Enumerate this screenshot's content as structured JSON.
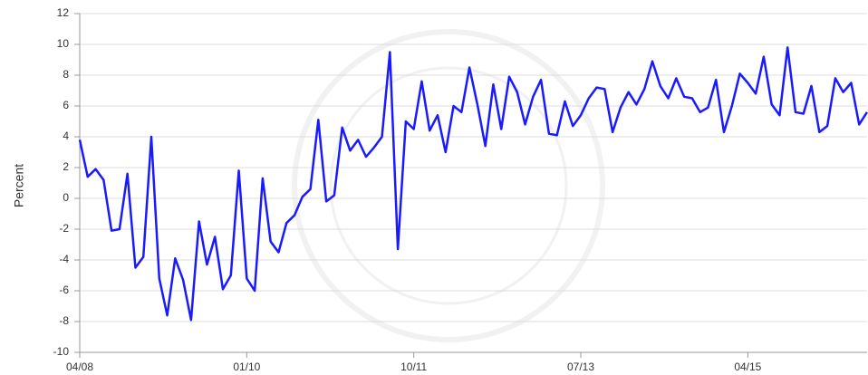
{
  "chart_data": {
    "type": "line",
    "ylabel": "Percent",
    "x": [
      "04/08",
      "05/08",
      "06/08",
      "07/08",
      "08/08",
      "09/08",
      "10/08",
      "11/08",
      "12/08",
      "01/09",
      "02/09",
      "03/09",
      "04/09",
      "05/09",
      "06/09",
      "07/09",
      "08/09",
      "09/09",
      "10/09",
      "11/09",
      "12/09",
      "01/10",
      "02/10",
      "03/10",
      "04/10",
      "05/10",
      "06/10",
      "07/10",
      "08/10",
      "09/10",
      "10/10",
      "11/10",
      "12/10",
      "01/11",
      "02/11",
      "03/11",
      "04/11",
      "05/11",
      "06/11",
      "07/11",
      "08/11",
      "09/11",
      "10/11",
      "11/11",
      "12/11",
      "01/12",
      "02/12",
      "03/12",
      "04/12",
      "05/12",
      "06/12",
      "07/12",
      "08/12",
      "09/12",
      "10/12",
      "11/12",
      "12/12",
      "01/13",
      "02/13",
      "03/13",
      "04/13",
      "05/13",
      "06/13",
      "07/13",
      "08/13",
      "09/13",
      "10/13",
      "11/13",
      "12/13",
      "01/14",
      "02/14",
      "03/14",
      "04/14",
      "05/14",
      "06/14",
      "07/14",
      "08/14",
      "09/14",
      "10/14",
      "11/14",
      "12/14",
      "01/15",
      "02/15",
      "03/15",
      "04/15",
      "05/15",
      "06/15",
      "07/15",
      "08/15",
      "09/15",
      "10/15",
      "11/15",
      "12/15",
      "01/16",
      "02/16",
      "03/16",
      "04/16",
      "05/16",
      "06/16",
      "07/16"
    ],
    "series": [
      {
        "name": "Percent",
        "color": "#1a1aff",
        "values": [
          3.8,
          1.4,
          1.9,
          1.2,
          -2.1,
          -2.0,
          1.6,
          -4.5,
          -3.8,
          4.0,
          -5.2,
          -7.6,
          -3.9,
          -5.3,
          -7.9,
          -1.5,
          -4.3,
          -2.5,
          -5.9,
          -5.0,
          1.8,
          -5.2,
          -6.0,
          1.3,
          -2.8,
          -3.5,
          -1.6,
          -1.1,
          0.1,
          0.6,
          5.1,
          -0.2,
          0.2,
          4.6,
          3.1,
          3.8,
          2.7,
          3.3,
          4.0,
          9.5,
          -3.3,
          5.0,
          4.5,
          7.6,
          4.4,
          5.4,
          3.0,
          6.0,
          5.6,
          8.5,
          6.1,
          3.4,
          7.4,
          4.5,
          7.9,
          6.9,
          4.8,
          6.6,
          7.7,
          4.2,
          4.1,
          6.3,
          4.7,
          5.4,
          6.5,
          7.2,
          7.1,
          4.3,
          5.9,
          6.9,
          6.1,
          7.1,
          8.9,
          7.3,
          6.5,
          7.8,
          6.6,
          6.5,
          5.6,
          5.9,
          7.7,
          4.3,
          6.0,
          8.1,
          7.5,
          6.8,
          9.2,
          6.1,
          5.4,
          9.8,
          5.6,
          5.5,
          7.3,
          4.3,
          4.7,
          7.8,
          6.9,
          7.5,
          4.8,
          5.6
        ]
      }
    ],
    "xticks": [
      "04/08",
      "01/10",
      "10/11",
      "07/13",
      "04/15"
    ],
    "ylim": [
      -10,
      12
    ],
    "yticks": [
      -10,
      -8,
      -6,
      -4,
      -2,
      0,
      2,
      4,
      6,
      8,
      10,
      12
    ],
    "grid": true
  }
}
